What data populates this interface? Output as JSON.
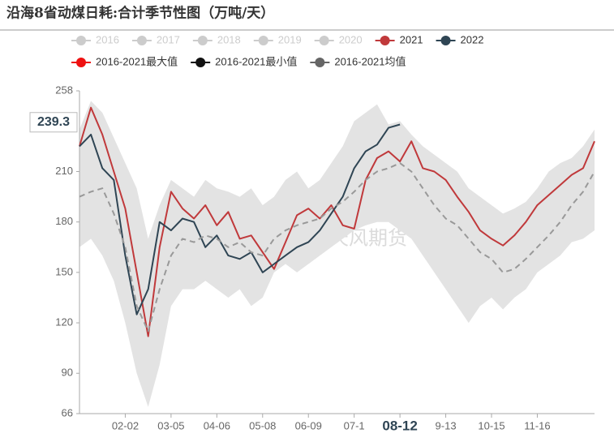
{
  "chart_data": {
    "type": "line",
    "title": "沿海8省动煤日耗:合计季节性图（万吨/天）",
    "watermark": "紫金天风期货",
    "legend_inactive": [
      "2016",
      "2017",
      "2018",
      "2019",
      "2020"
    ],
    "categories": [
      null,
      null,
      null,
      null,
      "02-02",
      null,
      null,
      null,
      "03-05",
      null,
      null,
      null,
      "04-06",
      null,
      null,
      null,
      "05-08",
      null,
      null,
      null,
      "06-09",
      null,
      null,
      null,
      "07-1",
      null,
      null,
      null,
      "08-12",
      null,
      null,
      null,
      "9-13",
      null,
      null,
      null,
      "10-15",
      null,
      null,
      null,
      "11-16",
      null,
      null,
      null,
      null,
      null
    ],
    "series": [
      {
        "name": "2021",
        "color": "#c0393b",
        "values": [
          225,
          248,
          232,
          210,
          188,
          150,
          112,
          165,
          198,
          188,
          182,
          190,
          178,
          186,
          170,
          172,
          162,
          152,
          168,
          184,
          188,
          182,
          190,
          178,
          176,
          205,
          218,
          222,
          216,
          228,
          212,
          210,
          205,
          195,
          186,
          175,
          170,
          166,
          172,
          180,
          190,
          196,
          202,
          208,
          212,
          228
        ]
      },
      {
        "name": "2022",
        "color": "#2f4554",
        "values": [
          225,
          232,
          212,
          205,
          160,
          125,
          140,
          180,
          175,
          182,
          180,
          165,
          172,
          160,
          158,
          162,
          150,
          155,
          160,
          165,
          168,
          175,
          185,
          195,
          212,
          222,
          226,
          236,
          238,
          null,
          null,
          null,
          null,
          null,
          null,
          null,
          null,
          null,
          null,
          null,
          null,
          null,
          null,
          null,
          null,
          null
        ]
      },
      {
        "name": "2016-2021最大值",
        "color": "#ee1111",
        "role": "band-max",
        "values": [
          235,
          252,
          245,
          230,
          215,
          200,
          170,
          190,
          205,
          200,
          195,
          205,
          200,
          198,
          195,
          200,
          190,
          195,
          205,
          210,
          200,
          205,
          215,
          225,
          240,
          245,
          250,
          238,
          240,
          232,
          225,
          220,
          215,
          210,
          200,
          195,
          190,
          185,
          188,
          192,
          200,
          210,
          215,
          218,
          225,
          235
        ]
      },
      {
        "name": "2016-2021最小值",
        "color": "#111111",
        "role": "band-min",
        "values": [
          165,
          170,
          160,
          145,
          120,
          90,
          70,
          95,
          130,
          140,
          140,
          145,
          140,
          135,
          140,
          130,
          135,
          150,
          155,
          150,
          155,
          160,
          165,
          170,
          175,
          178,
          180,
          180,
          175,
          170,
          160,
          150,
          140,
          130,
          120,
          130,
          135,
          128,
          135,
          140,
          150,
          155,
          160,
          168,
          170,
          175
        ]
      },
      {
        "name": "2016-2021均值",
        "color": "#666666",
        "role": "mean",
        "values": [
          195,
          198,
          200,
          185,
          165,
          130,
          115,
          140,
          160,
          170,
          168,
          172,
          170,
          165,
          168,
          162,
          160,
          170,
          175,
          178,
          180,
          182,
          188,
          192,
          198,
          205,
          210,
          212,
          215,
          210,
          200,
          190,
          182,
          178,
          170,
          162,
          158,
          150,
          152,
          158,
          165,
          172,
          180,
          190,
          198,
          210
        ]
      }
    ],
    "ylim": [
      66,
      258
    ],
    "yticks": [
      66,
      90,
      120,
      150,
      180,
      210,
      258
    ],
    "pointer": {
      "x": "08-12",
      "y": 239.3
    }
  }
}
